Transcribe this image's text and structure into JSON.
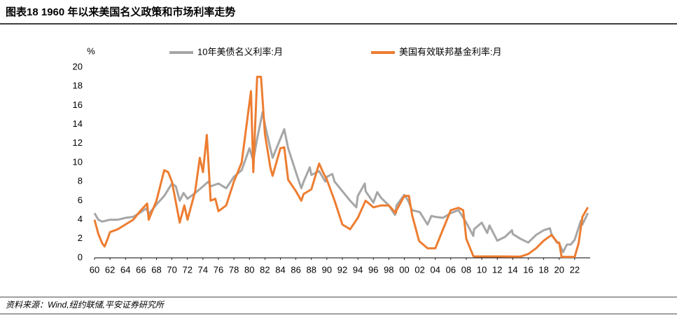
{
  "chart_data": {
    "type": "line",
    "title": "图表18    1960 年以来美国名义政策和市场利率走势",
    "y_unit": "%",
    "source": "资料来源：Wind,纽约联储,平安证券研究所",
    "legend": "top",
    "xlim": [
      1960,
      2024
    ],
    "ylim": [
      0,
      20
    ],
    "yticks": [
      0,
      2,
      4,
      6,
      8,
      10,
      12,
      14,
      16,
      18,
      20
    ],
    "xticks": [
      {
        "value": 1960,
        "label": "60"
      },
      {
        "value": 1962,
        "label": "62"
      },
      {
        "value": 1964,
        "label": "64"
      },
      {
        "value": 1966,
        "label": "66"
      },
      {
        "value": 1968,
        "label": "68"
      },
      {
        "value": 1970,
        "label": "70"
      },
      {
        "value": 1972,
        "label": "72"
      },
      {
        "value": 1974,
        "label": "74"
      },
      {
        "value": 1976,
        "label": "76"
      },
      {
        "value": 1978,
        "label": "78"
      },
      {
        "value": 1980,
        "label": "80"
      },
      {
        "value": 1982,
        "label": "82"
      },
      {
        "value": 1984,
        "label": "84"
      },
      {
        "value": 1986,
        "label": "86"
      },
      {
        "value": 1988,
        "label": "88"
      },
      {
        "value": 1990,
        "label": "90"
      },
      {
        "value": 1992,
        "label": "92"
      },
      {
        "value": 1994,
        "label": "94"
      },
      {
        "value": 1996,
        "label": "96"
      },
      {
        "value": 1998,
        "label": "98"
      },
      {
        "value": 2000,
        "label": "00"
      },
      {
        "value": 2002,
        "label": "02"
      },
      {
        "value": 2004,
        "label": "04"
      },
      {
        "value": 2006,
        "label": "06"
      },
      {
        "value": 2008,
        "label": "08"
      },
      {
        "value": 2010,
        "label": "10"
      },
      {
        "value": 2012,
        "label": "12"
      },
      {
        "value": 2014,
        "label": "14"
      },
      {
        "value": 2016,
        "label": "16"
      },
      {
        "value": 2018,
        "label": "18"
      },
      {
        "value": 2020,
        "label": "20"
      },
      {
        "value": 2022,
        "label": "22"
      }
    ],
    "series": [
      {
        "name": "10年美债名义利率:月",
        "color": "#a6a6a6",
        "x": [
          1960,
          1960.5,
          1961,
          1962,
          1963,
          1964,
          1965,
          1966,
          1966.7,
          1967,
          1968,
          1969,
          1970,
          1970.5,
          1971,
          1971.5,
          1972,
          1973,
          1974,
          1974.7,
          1975,
          1976,
          1977,
          1978,
          1979,
          1980,
          1980.5,
          1981,
          1981.7,
          1982,
          1982.7,
          1983,
          1984,
          1984.5,
          1985,
          1986,
          1986.7,
          1987,
          1987.8,
          1988,
          1989,
          1989.8,
          1990,
          1990.7,
          1991,
          1992,
          1993,
          1993.8,
          1994,
          1994.9,
          1995,
          1996,
          1996.5,
          1997,
          1998,
          1998.8,
          1999,
          2000,
          2000.5,
          2001,
          2002,
          2003,
          2003.5,
          2004,
          2005,
          2006,
          2007,
          2008,
          2008.9,
          2009,
          2010,
          2010.7,
          2011,
          2012,
          2013,
          2013.9,
          2014,
          2015,
          2016,
          2017,
          2018,
          2018.8,
          2019,
          2019.7,
          2020,
          2020.5,
          2021,
          2021.5,
          2022,
          2022.8,
          2023,
          2023.7
        ],
        "values": [
          4.7,
          4.0,
          3.8,
          4.0,
          4.0,
          4.2,
          4.3,
          4.8,
          5.2,
          4.6,
          5.6,
          6.5,
          7.8,
          7.5,
          6.0,
          6.8,
          6.2,
          6.8,
          7.5,
          8.0,
          7.5,
          7.8,
          7.3,
          8.5,
          9.2,
          11.5,
          10.2,
          12.5,
          15.3,
          14.0,
          11.5,
          10.5,
          12.5,
          13.5,
          11.5,
          9.0,
          7.3,
          8.0,
          9.5,
          8.7,
          9.1,
          8.0,
          8.5,
          8.8,
          8.0,
          7.0,
          6.0,
          5.3,
          6.5,
          7.8,
          7.0,
          5.8,
          6.9,
          6.3,
          5.5,
          4.5,
          5.5,
          6.6,
          6.0,
          5.0,
          4.8,
          3.5,
          4.4,
          4.3,
          4.2,
          4.7,
          5.0,
          3.7,
          2.3,
          3.0,
          3.7,
          2.6,
          3.4,
          1.8,
          2.2,
          2.9,
          2.5,
          2.0,
          1.6,
          2.4,
          2.9,
          3.1,
          2.5,
          1.6,
          1.5,
          0.6,
          1.4,
          1.4,
          1.9,
          3.9,
          3.5,
          4.7
        ]
      },
      {
        "name": "美国有效联邦基金利率:月",
        "color": "#ed7d31",
        "x": [
          1960,
          1960.5,
          1961,
          1961.3,
          1961.7,
          1962,
          1963,
          1964,
          1965,
          1966,
          1966.8,
          1967,
          1968,
          1969,
          1969.5,
          1970,
          1971,
          1971.6,
          1972,
          1973,
          1973.6,
          1974,
          1974.5,
          1975,
          1975.6,
          1976,
          1977,
          1978,
          1979,
          1980.2,
          1980.5,
          1981,
          1981.5,
          1982,
          1982.7,
          1983,
          1984,
          1984.5,
          1985,
          1986,
          1986.7,
          1987,
          1988,
          1989,
          1989.5,
          1990,
          1991,
          1992,
          1993,
          1994,
          1995,
          1996,
          1997,
          1998,
          1998.9,
          1999,
          2000,
          2000.6,
          2001,
          2001.9,
          2002,
          2003,
          2004,
          2005,
          2006,
          2007,
          2007.6,
          2008,
          2008.9,
          2009,
          2012,
          2015,
          2016,
          2017,
          2018,
          2019,
          2019.8,
          2020,
          2020.3,
          2022,
          2022.5,
          2023,
          2023.7
        ],
        "values": [
          4.0,
          2.5,
          1.5,
          1.2,
          2.0,
          2.7,
          3.0,
          3.5,
          4.0,
          5.0,
          5.7,
          4.0,
          6.0,
          9.2,
          9.0,
          8.0,
          3.7,
          5.5,
          4.0,
          7.0,
          10.5,
          9.0,
          12.9,
          6.0,
          6.2,
          4.9,
          5.5,
          8.0,
          10.0,
          17.5,
          9.0,
          19.0,
          19.0,
          13.0,
          9.5,
          8.6,
          11.5,
          11.6,
          8.2,
          7.0,
          6.0,
          6.7,
          7.2,
          9.9,
          9.0,
          8.2,
          6.0,
          3.5,
          3.0,
          4.2,
          6.0,
          5.3,
          5.5,
          5.5,
          4.7,
          5.0,
          6.5,
          6.5,
          4.5,
          1.8,
          1.7,
          1.0,
          1.0,
          3.0,
          5.0,
          5.25,
          5.0,
          2.0,
          0.2,
          0.15,
          0.15,
          0.13,
          0.4,
          1.0,
          1.8,
          2.4,
          1.6,
          1.6,
          0.1,
          0.1,
          1.5,
          4.3,
          5.3
        ]
      }
    ]
  }
}
